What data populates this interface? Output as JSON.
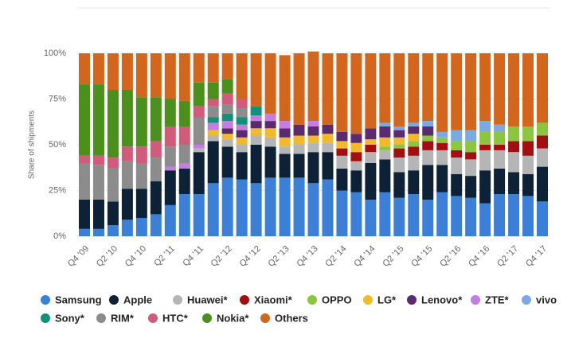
{
  "chart_data": {
    "type": "stacked_bar",
    "ylabel": "Share of shipments",
    "categories": [
      "Q4 '09",
      null,
      "Q2 '10",
      null,
      "Q4 '10",
      null,
      "Q2 '11",
      null,
      "Q4 '11",
      null,
      "Q2 '12",
      null,
      "Q4 '12",
      null,
      "Q2 '13",
      null,
      "Q4 '13",
      null,
      "Q2 '14",
      null,
      "Q4 '14",
      null,
      "Q2 '15",
      null,
      "Q4 '15",
      null,
      "Q2 '16",
      null,
      "Q4 '16",
      null,
      "Q2 '17",
      null,
      "Q4 '17"
    ],
    "ylim": [
      0,
      100
    ],
    "yticks": [
      {
        "value": 0,
        "label": "0%"
      },
      {
        "value": 25,
        "label": "25%"
      },
      {
        "value": 50,
        "label": "50%"
      },
      {
        "value": 75,
        "label": "75%"
      },
      {
        "value": 100,
        "label": "100%"
      }
    ],
    "grid": true,
    "legend": "bottom",
    "series": [
      {
        "name": "Samsung",
        "color": "#3b7fd6",
        "values": [
          4,
          4,
          6,
          9,
          10,
          12,
          17,
          23,
          23,
          29,
          32,
          31,
          29,
          32,
          32,
          32,
          29,
          31,
          25,
          24,
          20,
          24,
          21,
          23,
          20,
          24,
          22,
          21,
          18,
          23,
          23,
          22,
          19
        ]
      },
      {
        "name": "Apple",
        "color": "#0e2237",
        "values": [
          16,
          16,
          13,
          17,
          16,
          18,
          19,
          14,
          23,
          23,
          17,
          15,
          21,
          17,
          13,
          13,
          17,
          15,
          12,
          12,
          20,
          18,
          14,
          13,
          19,
          15,
          12,
          12,
          18,
          14,
          12,
          12,
          19
        ]
      },
      {
        "name": "Huawei*",
        "color": "#b5b5b5",
        "values": [
          null,
          null,
          null,
          null,
          null,
          null,
          null,
          null,
          2,
          3,
          4,
          4,
          5,
          5,
          4,
          5,
          5,
          5,
          7,
          5,
          6,
          5,
          8,
          8,
          8,
          8,
          9,
          9,
          11,
          10,
          11,
          10,
          10
        ]
      },
      {
        "name": "Xiaomi*",
        "color": "#a30f10",
        "values": [
          null,
          null,
          null,
          null,
          null,
          null,
          null,
          null,
          null,
          null,
          null,
          null,
          null,
          null,
          null,
          null,
          null,
          null,
          4,
          5,
          4,
          null,
          5,
          5,
          5,
          4,
          4,
          4,
          3,
          3,
          6,
          8,
          7
        ]
      },
      {
        "name": "OPPO",
        "color": "#8cc63f",
        "values": [
          null,
          null,
          null,
          null,
          null,
          null,
          null,
          null,
          null,
          null,
          null,
          null,
          null,
          null,
          null,
          null,
          null,
          null,
          null,
          null,
          null,
          2,
          2,
          3,
          3,
          3,
          5,
          6,
          7,
          7,
          8,
          8,
          7
        ]
      },
      {
        "name": "LG*",
        "color": "#f2b92b",
        "values": [
          null,
          null,
          null,
          null,
          null,
          null,
          null,
          null,
          null,
          3,
          3,
          4,
          4,
          5,
          5,
          5,
          4,
          5,
          4,
          5,
          3,
          5,
          4,
          4,
          null,
          null,
          null,
          null,
          null,
          null,
          null,
          null,
          null
        ]
      },
      {
        "name": "Lenovo*",
        "color": "#5b2b6f",
        "values": [
          null,
          null,
          null,
          null,
          null,
          null,
          null,
          null,
          null,
          null,
          3,
          4,
          4,
          4,
          5,
          6,
          5,
          5,
          5,
          5,
          6,
          6,
          4,
          4,
          5,
          null,
          null,
          null,
          null,
          null,
          null,
          null,
          null
        ]
      },
      {
        "name": "ZTE*",
        "color": "#c47de0",
        "values": [
          null,
          null,
          null,
          null,
          null,
          null,
          2,
          3,
          2,
          4,
          4,
          3,
          3,
          4,
          4,
          null,
          3,
          null,
          null,
          null,
          null,
          null,
          null,
          null,
          null,
          null,
          null,
          null,
          null,
          null,
          null,
          null,
          null
        ]
      },
      {
        "name": "vivo",
        "color": "#7ba9e0",
        "values": [
          null,
          null,
          null,
          null,
          null,
          null,
          null,
          null,
          null,
          null,
          null,
          null,
          null,
          null,
          null,
          null,
          null,
          null,
          null,
          null,
          null,
          2,
          2,
          2,
          3,
          3,
          6,
          6,
          6,
          4,
          null,
          null,
          null
        ]
      },
      {
        "name": "Sony*",
        "color": "#12917a",
        "values": [
          null,
          null,
          null,
          null,
          null,
          null,
          null,
          null,
          null,
          3,
          4,
          4,
          5,
          null,
          null,
          null,
          null,
          null,
          null,
          null,
          null,
          null,
          null,
          null,
          null,
          null,
          null,
          null,
          null,
          null,
          null,
          null,
          null
        ]
      },
      {
        "name": "RIM*",
        "color": "#8c8c8c",
        "values": [
          20,
          19,
          18,
          15,
          14,
          13,
          11,
          10,
          15,
          6,
          5,
          5,
          null,
          null,
          null,
          null,
          null,
          null,
          null,
          null,
          null,
          null,
          null,
          null,
          null,
          null,
          null,
          null,
          null,
          null,
          null,
          null,
          null
        ]
      },
      {
        "name": "HTC*",
        "color": "#d25b7b",
        "values": [
          4,
          5,
          6,
          8,
          9,
          9,
          11,
          10,
          6,
          4,
          6,
          5,
          null,
          null,
          null,
          null,
          null,
          null,
          null,
          null,
          null,
          null,
          null,
          null,
          null,
          null,
          null,
          null,
          null,
          null,
          null,
          null,
          null
        ]
      },
      {
        "name": "Nokia*",
        "color": "#4b8f1d",
        "values": [
          39,
          39,
          37,
          31,
          27,
          24,
          15,
          14,
          13,
          9,
          8,
          null,
          null,
          null,
          null,
          null,
          null,
          null,
          null,
          null,
          null,
          null,
          null,
          null,
          null,
          null,
          null,
          null,
          null,
          null,
          null,
          null,
          null
        ]
      },
      {
        "name": "Others",
        "color": "#d2661c",
        "values": [
          17,
          17,
          20,
          20,
          24,
          24,
          25,
          26,
          16,
          16,
          14,
          25,
          29,
          33,
          36,
          39,
          38,
          39,
          43,
          44,
          41,
          38,
          40,
          38,
          37,
          43,
          42,
          42,
          37,
          39,
          40,
          40,
          38
        ]
      }
    ]
  }
}
